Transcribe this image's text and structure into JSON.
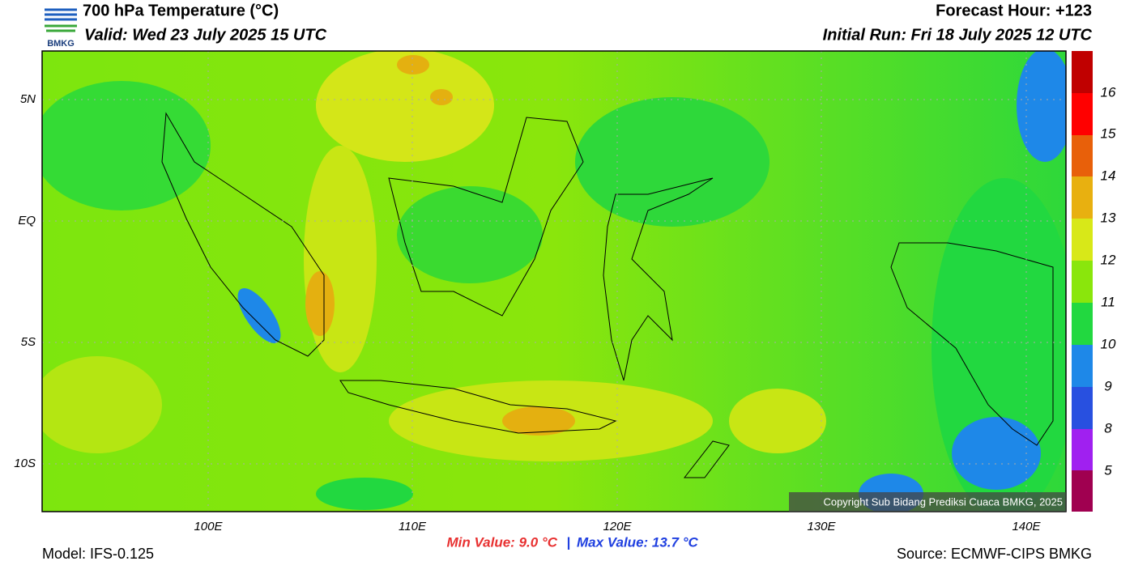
{
  "header": {
    "title": "700 hPa Temperature (°C)",
    "valid": "Valid: Wed 23 July 2025 15 UTC",
    "forecast_hour": "Forecast Hour: +123",
    "initial_run": "Initial Run: Fri 18 July 2025 12 UTC"
  },
  "logo": {
    "text": "BMKG"
  },
  "map": {
    "lat_labels": [
      "5N",
      "EQ",
      "5S",
      "10S"
    ],
    "lon_labels": [
      "100E",
      "110E",
      "120E",
      "130E",
      "140E"
    ],
    "copyright": "Copyright Sub Bidang Prediksi Cuaca BMKG, 2025"
  },
  "colorbar": {
    "labels": [
      16,
      15,
      14,
      13,
      12,
      11,
      10,
      9,
      8,
      5
    ]
  },
  "footer": {
    "model": "Model: IFS-0.125",
    "min_value": "Min Value: 9.0 °C",
    "separator": "|",
    "max_value": "Max Value: 13.7 °C",
    "source": "Source: ECMWF-CIPS BMKG"
  }
}
